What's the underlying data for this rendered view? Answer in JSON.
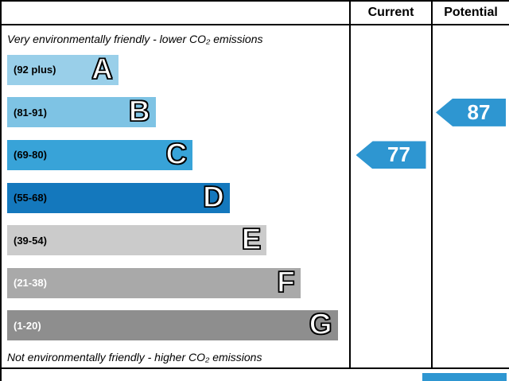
{
  "header": {
    "current": "Current",
    "potential": "Potential"
  },
  "captions": {
    "top": "Very environmentally friendly - lower CO₂ emissions",
    "bottom": "Not environmentally friendly - higher CO₂ emissions"
  },
  "chart_data": {
    "type": "bar",
    "title": "Environmental impact (CO₂) rating bands",
    "bands": [
      {
        "letter": "A",
        "range": "(92 plus)",
        "color": "#99cfe9",
        "label_color": "#000000",
        "width_pct": 33
      },
      {
        "letter": "B",
        "range": "(81-91)",
        "color": "#7ec3e4",
        "label_color": "#000000",
        "width_pct": 44
      },
      {
        "letter": "C",
        "range": "(69-80)",
        "color": "#38a3d8",
        "label_color": "#000000",
        "width_pct": 55
      },
      {
        "letter": "D",
        "range": "(55-68)",
        "color": "#1478bd",
        "label_color": "#000000",
        "width_pct": 66
      },
      {
        "letter": "E",
        "range": "(39-54)",
        "color": "#cbcbcb",
        "label_color": "#000000",
        "width_pct": 77
      },
      {
        "letter": "F",
        "range": "(21-38)",
        "color": "#a9a9a9",
        "label_color": "#ffffff",
        "width_pct": 87
      },
      {
        "letter": "G",
        "range": "(1-20)",
        "color": "#8e8e8e",
        "label_color": "#ffffff",
        "width_pct": 98
      }
    ],
    "markers": {
      "current": {
        "value": "77",
        "band_index": 2,
        "color": "#2e96d1"
      },
      "potential": {
        "value": "87",
        "band_index": 1,
        "color": "#2e96d1"
      }
    }
  },
  "footer": {
    "partial_box_color": "#2e96d1"
  }
}
